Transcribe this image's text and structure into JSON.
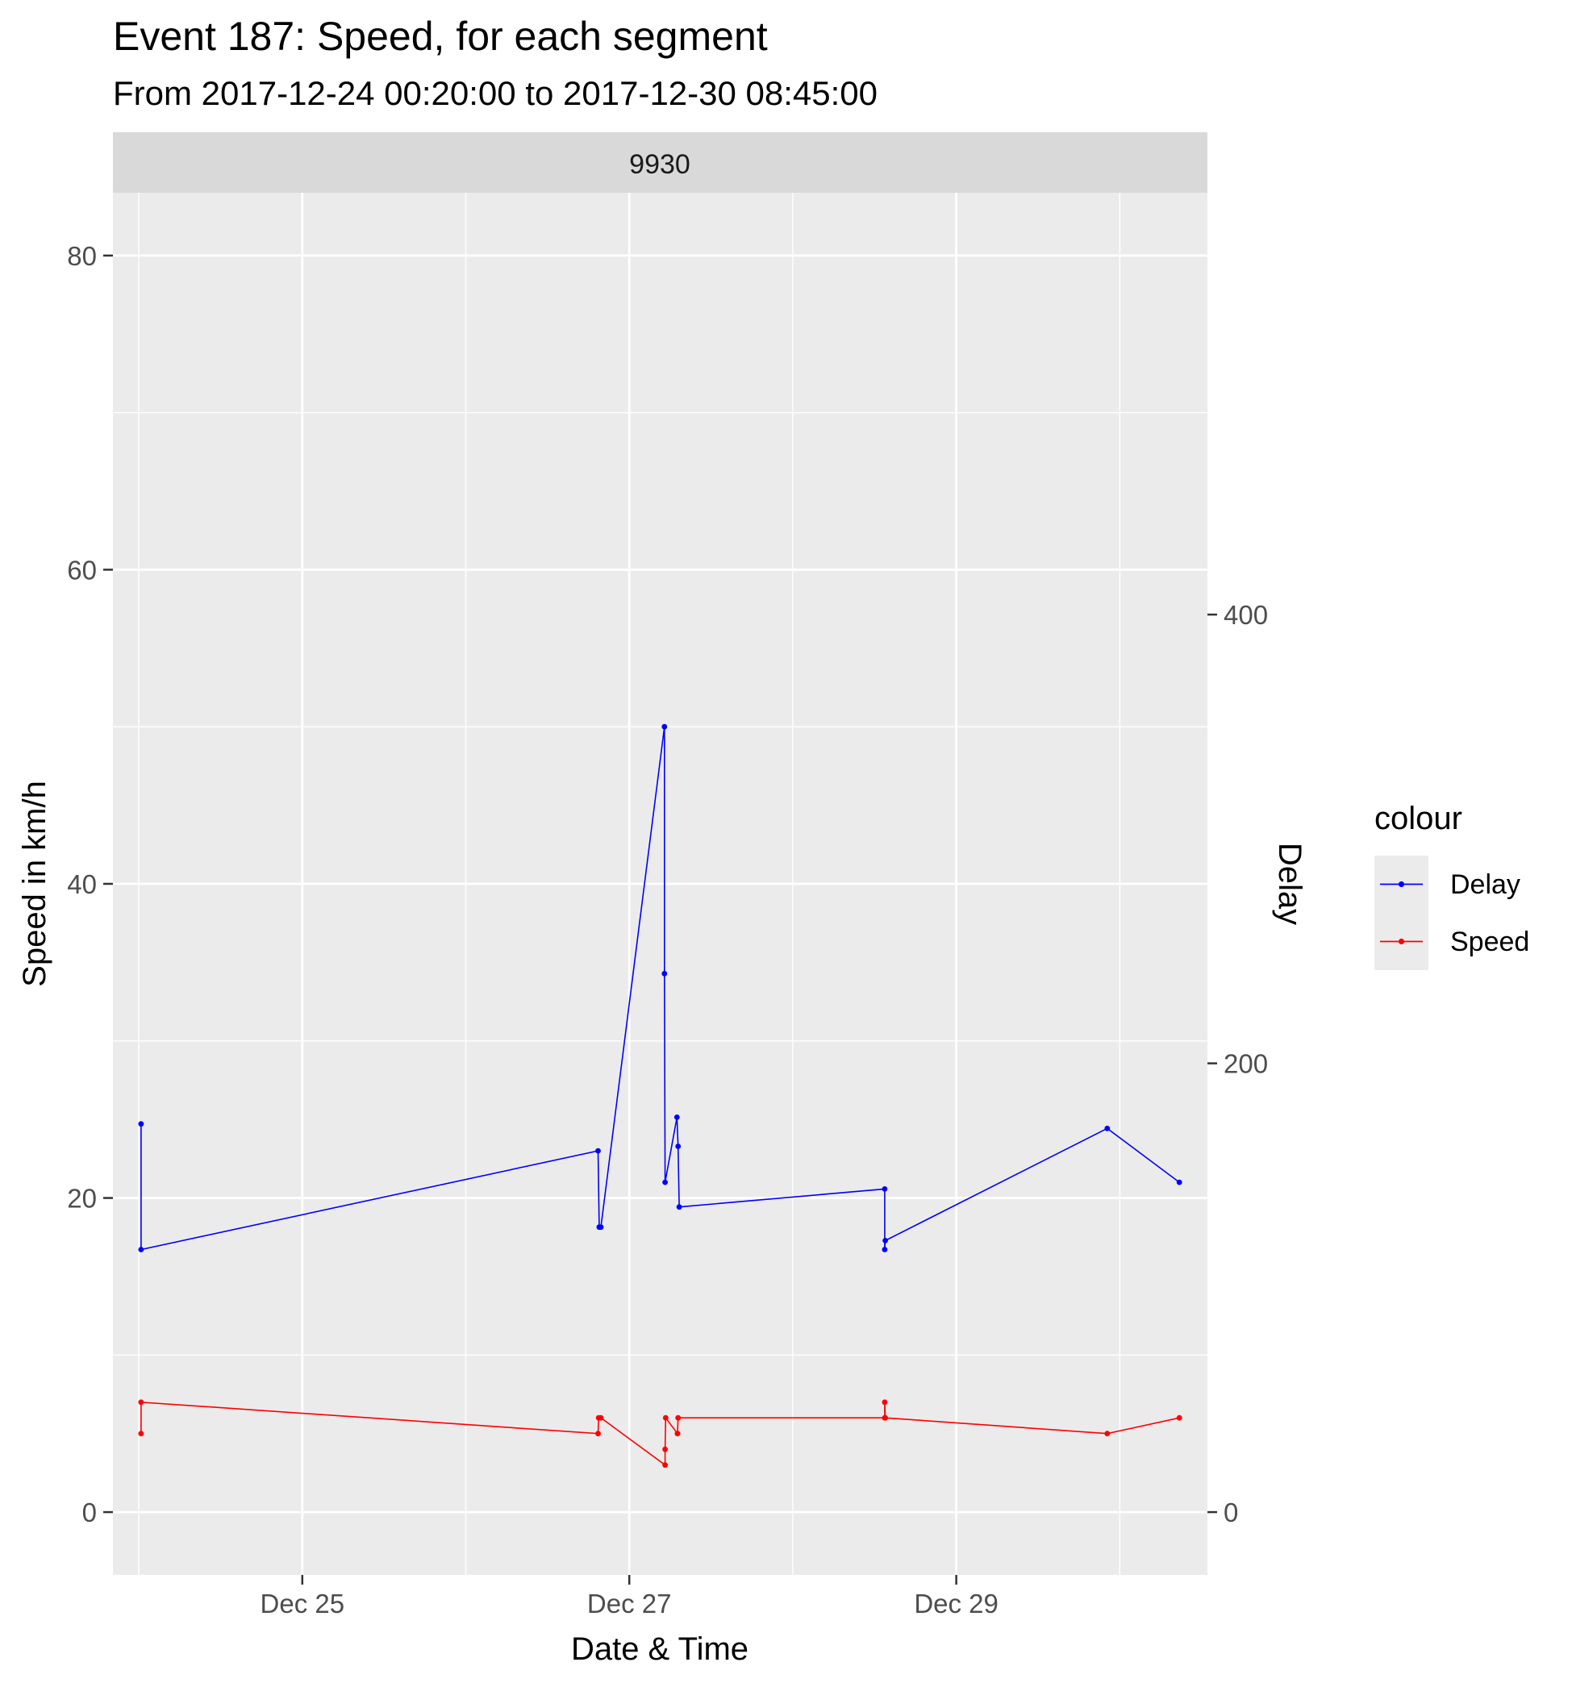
{
  "chart_data": {
    "type": "line",
    "title": "Event 187: Speed, for each segment",
    "subtitle": "From 2017-12-24 00:20:00 to 2017-12-30 08:45:00",
    "facet_label": "9930",
    "xlabel": "Date & Time",
    "ylabel": "Speed in km/h",
    "y2label": "Delay",
    "x_ticks": [
      {
        "value": "2017-12-25",
        "label": "Dec 25"
      },
      {
        "value": "2017-12-27",
        "label": "Dec 27"
      },
      {
        "value": "2017-12-29",
        "label": "Dec 29"
      }
    ],
    "xlim": [
      "2017-12-23T20:12:00",
      "2017-12-30T12:52:00"
    ],
    "y_ticks": [
      0,
      20,
      40,
      60,
      80
    ],
    "ylim": [
      -4,
      84
    ],
    "y2_ticks": [
      0,
      200,
      400
    ],
    "y2lim": [
      -28,
      588
    ],
    "grid": true,
    "legend": {
      "title": "colour",
      "position": "right"
    },
    "series": [
      {
        "name": "Delay",
        "color": "#0000ff",
        "axis": "right",
        "points": [
          {
            "x": "2017-12-24T00:20:00",
            "y": 173
          },
          {
            "x": "2017-12-24T00:20:00",
            "y": 117
          },
          {
            "x": "2017-12-26T19:25:00",
            "y": 161
          },
          {
            "x": "2017-12-26T19:35:00",
            "y": 127
          },
          {
            "x": "2017-12-26T19:50:00",
            "y": 127
          },
          {
            "x": "2017-12-27T05:10:00",
            "y": 350
          },
          {
            "x": "2017-12-27T05:10:00",
            "y": 240
          },
          {
            "x": "2017-12-27T05:15:00",
            "y": 147
          },
          {
            "x": "2017-12-27T07:00:00",
            "y": 176
          },
          {
            "x": "2017-12-27T07:10:00",
            "y": 163
          },
          {
            "x": "2017-12-27T07:20:00",
            "y": 136
          },
          {
            "x": "2017-12-28T13:30:00",
            "y": 144
          },
          {
            "x": "2017-12-28T13:30:00",
            "y": 117
          },
          {
            "x": "2017-12-28T13:35:00",
            "y": 121
          },
          {
            "x": "2017-12-29T22:10:00",
            "y": 171
          },
          {
            "x": "2017-12-30T08:45:00",
            "y": 147
          }
        ]
      },
      {
        "name": "Speed",
        "color": "#ff0000",
        "axis": "left",
        "points": [
          {
            "x": "2017-12-24T00:20:00",
            "y": 5
          },
          {
            "x": "2017-12-24T00:20:00",
            "y": 7
          },
          {
            "x": "2017-12-26T19:25:00",
            "y": 5
          },
          {
            "x": "2017-12-26T19:30:00",
            "y": 6
          },
          {
            "x": "2017-12-26T19:50:00",
            "y": 6
          },
          {
            "x": "2017-12-27T05:15:00",
            "y": 3
          },
          {
            "x": "2017-12-27T05:15:00",
            "y": 4
          },
          {
            "x": "2017-12-27T05:20:00",
            "y": 6
          },
          {
            "x": "2017-12-27T07:05:00",
            "y": 5
          },
          {
            "x": "2017-12-27T07:05:00",
            "y": 5
          },
          {
            "x": "2017-12-27T07:10:00",
            "y": 6
          },
          {
            "x": "2017-12-28T13:30:00",
            "y": 6
          },
          {
            "x": "2017-12-28T13:30:00",
            "y": 7
          },
          {
            "x": "2017-12-28T13:35:00",
            "y": 6
          },
          {
            "x": "2017-12-29T22:10:00",
            "y": 5
          },
          {
            "x": "2017-12-30T08:45:00",
            "y": 6
          }
        ]
      }
    ]
  }
}
